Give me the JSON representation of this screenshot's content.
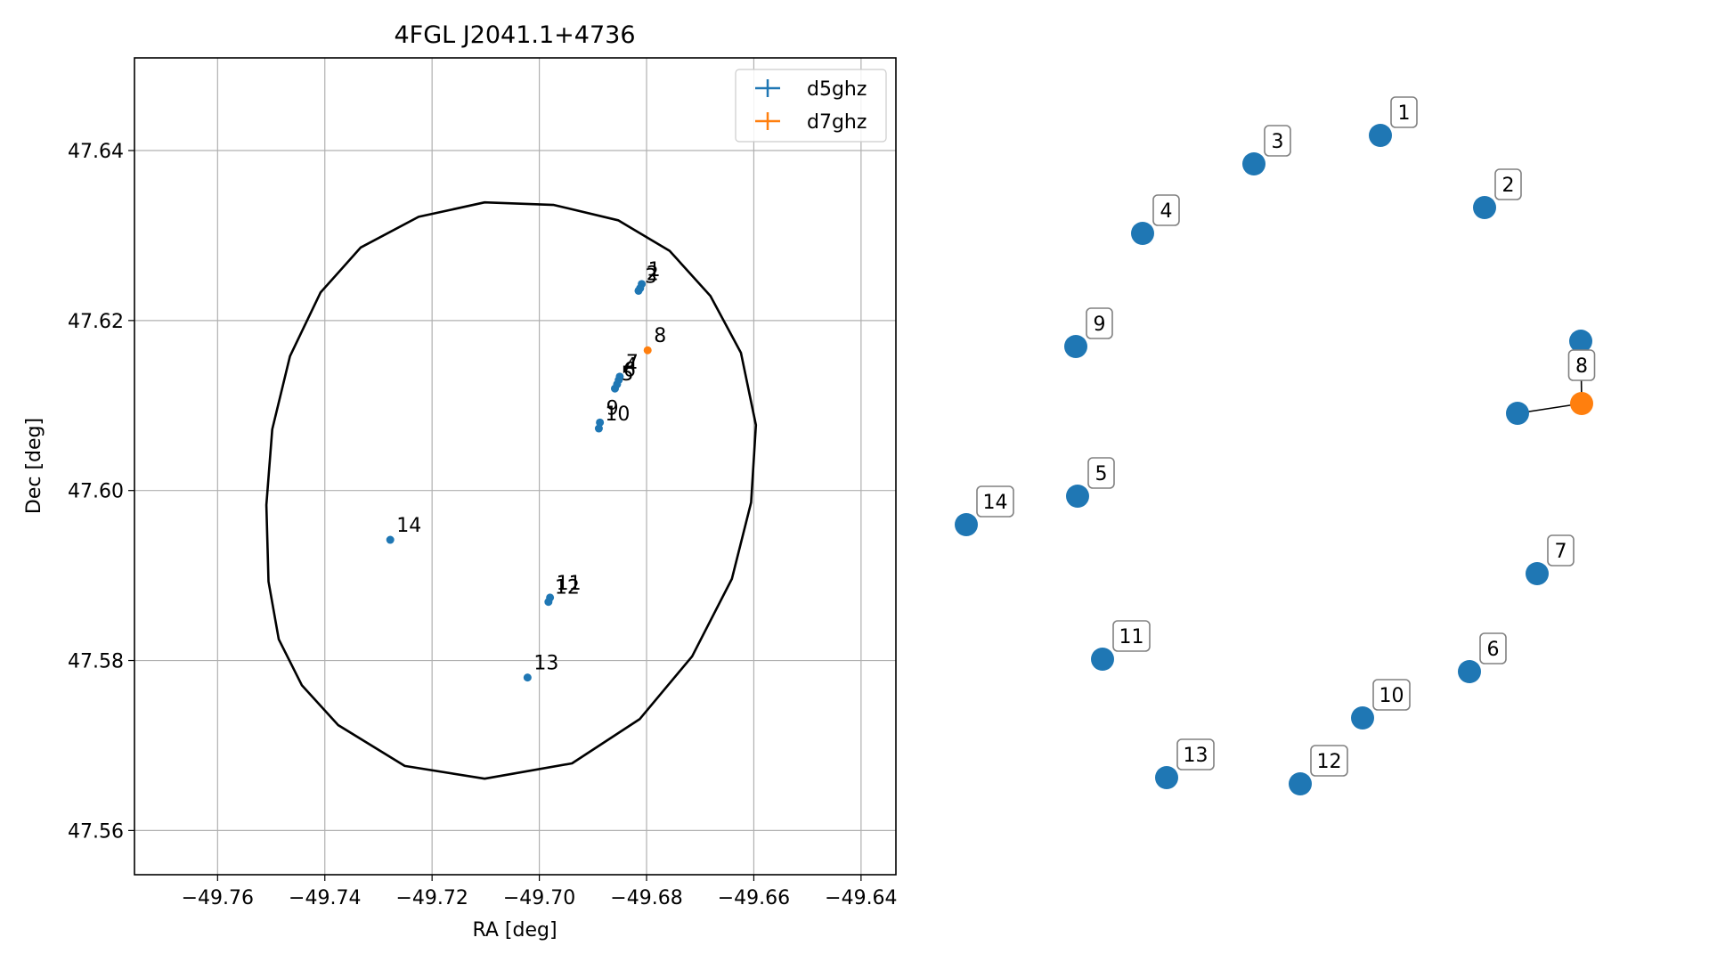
{
  "chart_data": [
    {
      "type": "scatter",
      "title": "4FGL J2041.1+4736",
      "xlabel": "RA [deg]",
      "ylabel": "Dec [deg]",
      "xlim": [
        -49.7755,
        -49.6335
      ],
      "ylim": [
        47.5548,
        47.6509
      ],
      "xticks": [
        -49.76,
        -49.74,
        -49.72,
        -49.7,
        -49.68,
        -49.66,
        -49.64
      ],
      "xtick_labels": [
        "−49.76",
        "−49.74",
        "−49.72",
        "−49.70",
        "−49.68",
        "−49.66",
        "−49.64"
      ],
      "yticks": [
        47.56,
        47.58,
        47.6,
        47.62,
        47.64
      ],
      "ytick_labels": [
        "47.56",
        "47.58",
        "47.60",
        "47.62",
        "47.64"
      ],
      "grid": true,
      "legend_position": "top-right",
      "ellipse": {
        "points": [
          [
            -49.7102,
            47.6339
          ],
          [
            -49.6973,
            47.6336
          ],
          [
            -49.6853,
            47.6318
          ],
          [
            -49.6757,
            47.6282
          ],
          [
            -49.6681,
            47.6229
          ],
          [
            -49.6624,
            47.6162
          ],
          [
            -49.6596,
            47.6077
          ],
          [
            -49.6605,
            47.5986
          ],
          [
            -49.6641,
            47.5896
          ],
          [
            -49.6715,
            47.5805
          ],
          [
            -49.6813,
            47.5731
          ],
          [
            -49.6939,
            47.5679
          ],
          [
            -49.7102,
            47.5661
          ],
          [
            -49.7251,
            47.5676
          ],
          [
            -49.7375,
            47.5724
          ],
          [
            -49.7443,
            47.5771
          ],
          [
            -49.7486,
            47.5825
          ],
          [
            -49.7505,
            47.5893
          ],
          [
            -49.7509,
            47.5983
          ],
          [
            -49.7498,
            47.6072
          ],
          [
            -49.7465,
            47.6158
          ],
          [
            -49.7408,
            47.6233
          ],
          [
            -49.7333,
            47.6286
          ],
          [
            -49.7225,
            47.6322
          ]
        ]
      },
      "series": [
        {
          "name": "d5ghz",
          "color": "#1f77b4",
          "points": [
            {
              "label": "1",
              "x": -49.6809,
              "y": 47.6243
            },
            {
              "label": "2",
              "x": -49.6812,
              "y": 47.6238
            },
            {
              "label": "3",
              "x": -49.6815,
              "y": 47.6235
            },
            {
              "label": "4",
              "x": -49.6852,
              "y": 47.613
            },
            {
              "label": "5",
              "x": -49.6859,
              "y": 47.612
            },
            {
              "label": "6",
              "x": -49.6855,
              "y": 47.6125
            },
            {
              "label": "7",
              "x": -49.685,
              "y": 47.6134
            },
            {
              "label": "9",
              "x": -49.6887,
              "y": 47.608
            },
            {
              "label": "10",
              "x": -49.6889,
              "y": 47.6073
            },
            {
              "label": "11",
              "x": -49.698,
              "y": 47.5874
            },
            {
              "label": "12",
              "x": -49.6983,
              "y": 47.5869
            },
            {
              "label": "13",
              "x": -49.7022,
              "y": 47.578
            },
            {
              "label": "14",
              "x": -49.7278,
              "y": 47.5942
            }
          ]
        },
        {
          "name": "d7ghz",
          "color": "#ff7f0e",
          "points": [
            {
              "label": "8",
              "x": -49.6798,
              "y": 47.6165
            }
          ]
        }
      ]
    },
    {
      "type": "network",
      "nodes": [
        {
          "label": "1",
          "color": "#1f77b4"
        },
        {
          "label": "2",
          "color": "#1f77b4"
        },
        {
          "label": "3",
          "color": "#1f77b4"
        },
        {
          "label": "4",
          "color": "#1f77b4"
        },
        {
          "label": "9",
          "color": "#1f77b4"
        },
        {
          "label": "",
          "color": "#1f77b4"
        },
        {
          "label": "8",
          "color": "#ff7f0e"
        },
        {
          "label": "",
          "color": "#1f77b4"
        },
        {
          "label": "14",
          "color": "#1f77b4"
        },
        {
          "label": "5",
          "color": "#1f77b4"
        },
        {
          "label": "7",
          "color": "#1f77b4"
        },
        {
          "label": "11",
          "color": "#1f77b4"
        },
        {
          "label": "6",
          "color": "#1f77b4"
        },
        {
          "label": "10",
          "color": "#1f77b4"
        },
        {
          "label": "13",
          "color": "#1f77b4"
        },
        {
          "label": "12",
          "color": "#1f77b4"
        }
      ],
      "edges": [
        [
          5,
          6
        ],
        [
          6,
          7
        ]
      ]
    }
  ]
}
